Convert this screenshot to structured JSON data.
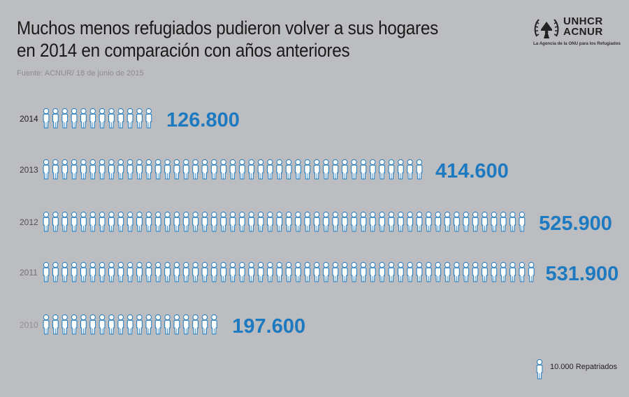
{
  "header": {
    "title": "Muchos menos refugiados pudieron volver a sus hogares en 2014 en comparación con años anteriores",
    "source": "Fuente: ACNUR/ 18 de junio de 2015"
  },
  "logo": {
    "line1": "UNHCR",
    "line2": "ACNUR",
    "tagline": "La Agencia de la ONU para los Refugiados",
    "icon": "unhcr-emblem-icon"
  },
  "legend": {
    "label": "10.000 Repatriados",
    "icon": "person-icon"
  },
  "colors": {
    "background": "#bcbdc0",
    "accent": "#1d7ac0",
    "icon_fill": "#ffffff",
    "icon_stroke": "#1d7ac0"
  },
  "chart_data": {
    "type": "pictogram",
    "unit_value": 10000,
    "categories": [
      "2014",
      "2013",
      "2012",
      "2011",
      "2010"
    ],
    "values": [
      126800,
      414600,
      525900,
      531900,
      197600
    ],
    "value_labels": [
      "126.800",
      "414.600",
      "525.900",
      "531.900",
      "197.600"
    ],
    "year_label_colors": [
      "#1a1a1a",
      "#3a3a3a",
      "#555555",
      "#707070",
      "#909090"
    ]
  }
}
